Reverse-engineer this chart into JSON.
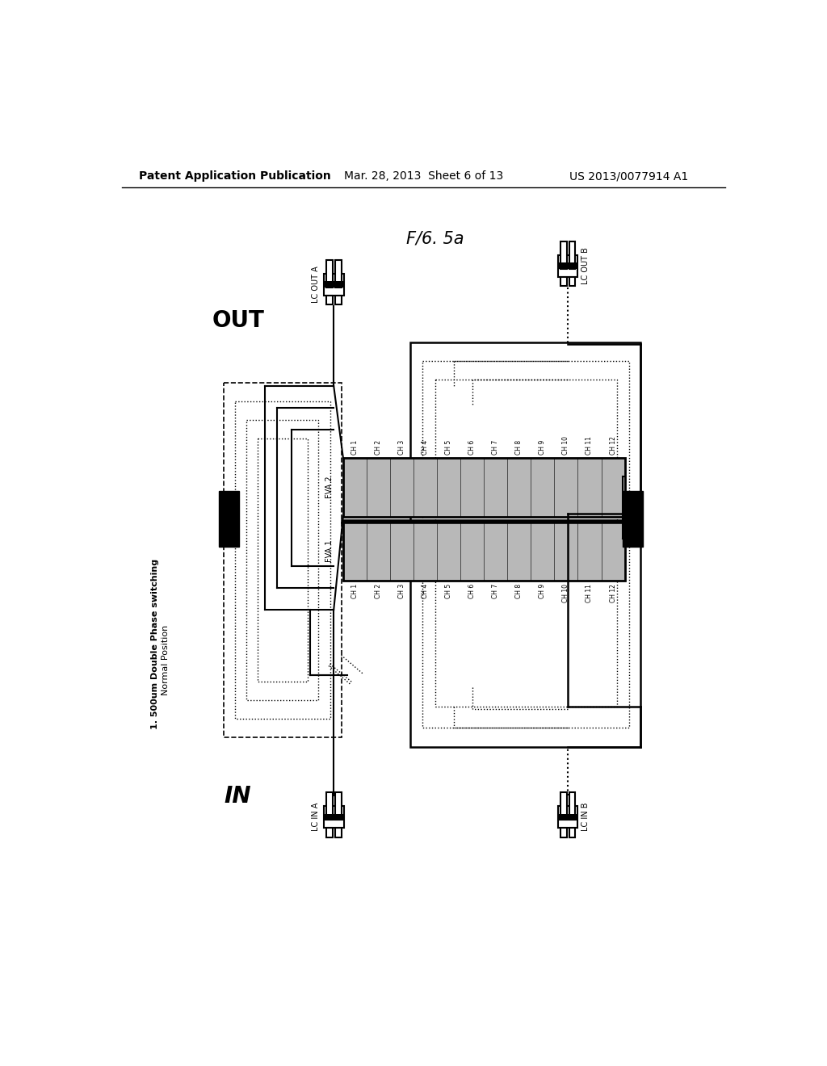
{
  "bg_color": "#ffffff",
  "header_text": "Patent Application Publication",
  "header_date": "Mar. 28, 2013  Sheet 6 of 13",
  "header_patent": "US 2013/0077914 A1",
  "fig_label": "F/6. 5a",
  "title_left": "1. 500um Double Phase switching",
  "subtitle_left": "Normal Position",
  "out_label": "OUT",
  "in_label": "IN",
  "lc_out_a": "LC OUT A",
  "lc_out_b": "LC OUT B",
  "lc_in_a": "LC IN A",
  "lc_in_b": "LC IN B",
  "fva1_label": "FVA 1",
  "fva2_label": "FVA 2",
  "channels": [
    "CH 1",
    "CH 2",
    "CH 3",
    "CH 4",
    "CH 5",
    "CH 6",
    "CH 7",
    "CH 8",
    "CH 9",
    "CH 10",
    "CH 11",
    "CH 12"
  ]
}
